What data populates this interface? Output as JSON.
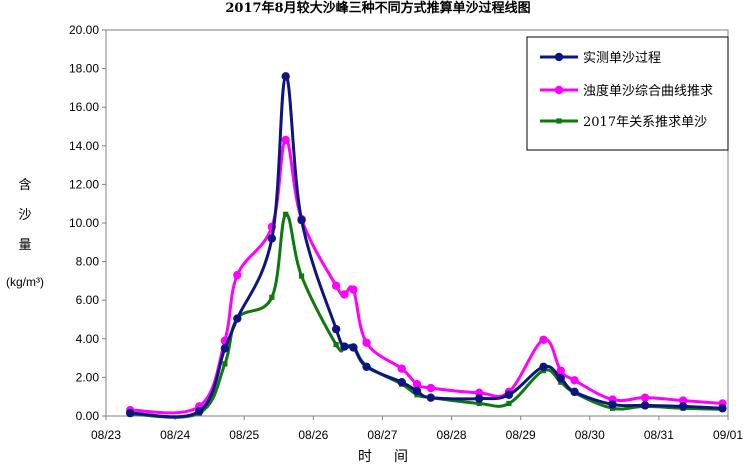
{
  "chart_data": {
    "type": "line",
    "title": "2017年8月较大沙峰三种不同方式推算单沙过程线图",
    "xlabel": "时间",
    "ylabel_lines": [
      "含",
      "沙",
      "量"
    ],
    "ylabel_unit": "(kg/m³)",
    "xlim_days": [
      23,
      32
    ],
    "ylim": [
      0,
      20
    ],
    "x_ticks": [
      "08/23",
      "08/24",
      "08/25",
      "08/26",
      "08/27",
      "08/28",
      "08/29",
      "08/30",
      "08/31",
      "09/01"
    ],
    "y_ticks": [
      "0.00",
      "2.00",
      "4.00",
      "6.00",
      "8.00",
      "10.00",
      "12.00",
      "14.00",
      "16.00",
      "18.00",
      "20.00"
    ],
    "grid": false,
    "legend_position": "top-right",
    "series": [
      {
        "name": "实测单沙过程",
        "color": "#0d1580",
        "marker": "circle",
        "x": [
          23.35,
          24.35,
          24.72,
          24.9,
          25.4,
          25.6,
          25.83,
          26.33,
          26.45,
          26.58,
          26.77,
          27.28,
          27.5,
          27.7,
          28.4,
          28.83,
          29.33,
          29.58,
          29.78,
          30.33,
          30.8,
          31.35,
          31.92
        ],
        "y": [
          0.15,
          0.25,
          3.5,
          5.05,
          9.2,
          17.6,
          10.15,
          4.5,
          3.6,
          3.55,
          2.55,
          1.75,
          1.3,
          0.95,
          0.9,
          1.1,
          2.55,
          1.95,
          1.25,
          0.6,
          0.55,
          0.5,
          0.4
        ]
      },
      {
        "name": "浊度单沙综合曲线推求",
        "color": "#ff00ff",
        "marker": "circle",
        "x": [
          23.35,
          24.35,
          24.72,
          24.9,
          25.4,
          25.6,
          25.83,
          26.33,
          26.45,
          26.58,
          26.77,
          27.28,
          27.5,
          27.7,
          28.4,
          28.83,
          29.33,
          29.58,
          29.78,
          30.33,
          30.8,
          31.35,
          31.92
        ],
        "y": [
          0.3,
          0.5,
          3.9,
          7.3,
          9.8,
          14.3,
          10.2,
          6.75,
          6.3,
          6.55,
          3.8,
          2.45,
          1.65,
          1.45,
          1.2,
          1.25,
          3.95,
          2.35,
          1.85,
          0.85,
          0.95,
          0.8,
          0.65
        ]
      },
      {
        "name": "2017年关系推求单沙",
        "color": "#0e7a0e",
        "marker": "square",
        "x": [
          23.35,
          24.35,
          24.72,
          24.9,
          25.4,
          25.6,
          25.83,
          26.33,
          26.45,
          26.58,
          26.77,
          27.28,
          27.5,
          27.7,
          28.4,
          28.83,
          29.33,
          29.58,
          29.78,
          30.33,
          30.8,
          31.35,
          31.92
        ],
        "y": [
          0.1,
          0.15,
          2.7,
          5.05,
          6.15,
          10.45,
          7.25,
          3.7,
          3.55,
          3.6,
          2.6,
          1.65,
          1.1,
          0.95,
          0.65,
          0.65,
          2.35,
          1.75,
          1.2,
          0.4,
          0.5,
          0.4,
          0.35
        ]
      }
    ]
  }
}
